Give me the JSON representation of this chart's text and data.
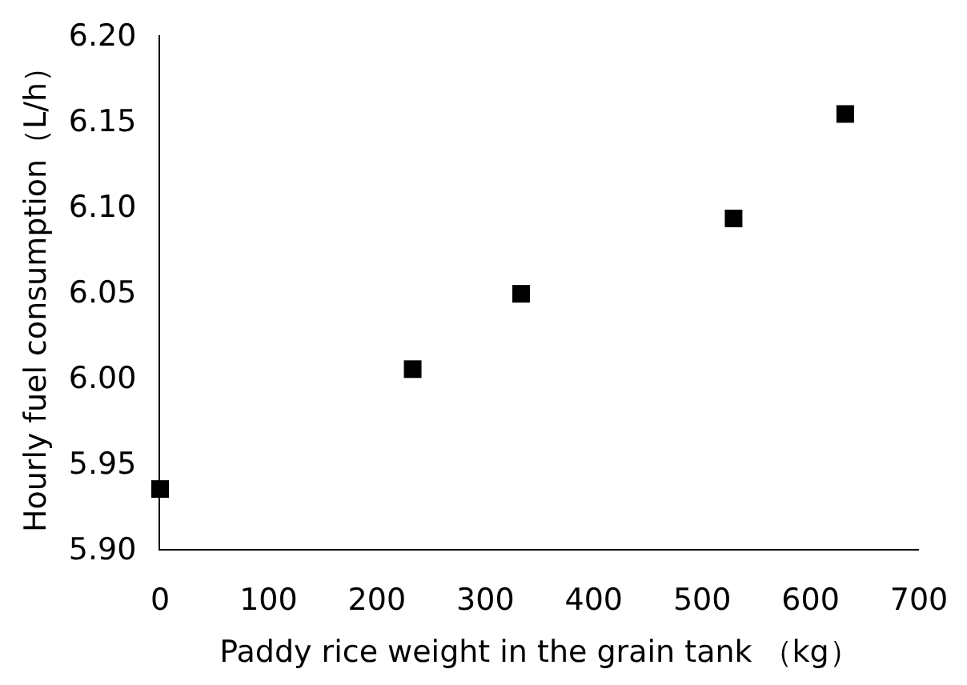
{
  "chart_data": {
    "type": "scatter",
    "x": [
      0,
      233,
      333,
      529,
      632
    ],
    "values": [
      5.935,
      6.005,
      6.049,
      6.093,
      6.154
    ],
    "color": "#000000",
    "marker": "square",
    "xlabel": "Paddy rice weight in the grain tank （kg）",
    "ylabel": "Hourly fuel consumption（L/h）",
    "xlim": [
      0,
      700
    ],
    "xticks": [
      0,
      100,
      200,
      300,
      400,
      500,
      600,
      700
    ],
    "ylim": [
      5.9,
      6.2
    ],
    "yticks": [
      {
        "value": 5.9,
        "label": "5.90"
      },
      {
        "value": 5.95,
        "label": "5.95"
      },
      {
        "value": 6.0,
        "label": "6.00"
      },
      {
        "value": 6.05,
        "label": "6.05"
      },
      {
        "value": 6.1,
        "label": "6.10"
      },
      {
        "value": 6.15,
        "label": "6.15"
      },
      {
        "value": 6.2,
        "label": "6.20"
      }
    ]
  }
}
